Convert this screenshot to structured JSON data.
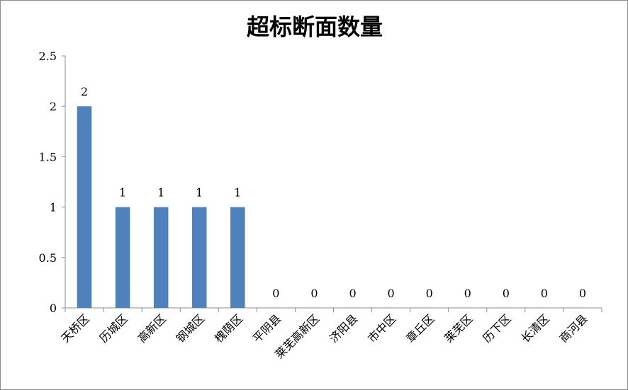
{
  "chart_data": {
    "type": "bar",
    "title": "超标断面数量",
    "xlabel": "",
    "ylabel": "",
    "categories": [
      "天桥区",
      "历城区",
      "高新区",
      "钢城区",
      "槐荫区",
      "平阴县",
      "莱芜高新区",
      "济阳县",
      "市中区",
      "章丘区",
      "莱芜区",
      "历下区",
      "长清区",
      "商河县"
    ],
    "values": [
      2,
      1,
      1,
      1,
      1,
      0,
      0,
      0,
      0,
      0,
      0,
      0,
      0,
      0
    ],
    "data_labels": [
      "2",
      "1",
      "1",
      "1",
      "1",
      "0",
      "0",
      "0",
      "0",
      "0",
      "0",
      "0",
      "0",
      "0"
    ],
    "yticks": [
      "0",
      "0.5",
      "1",
      "1.5",
      "2",
      "2.5"
    ],
    "ylim": [
      0,
      2.5
    ],
    "grid": false,
    "legend": "none",
    "bar_color": "#4f81bd"
  }
}
